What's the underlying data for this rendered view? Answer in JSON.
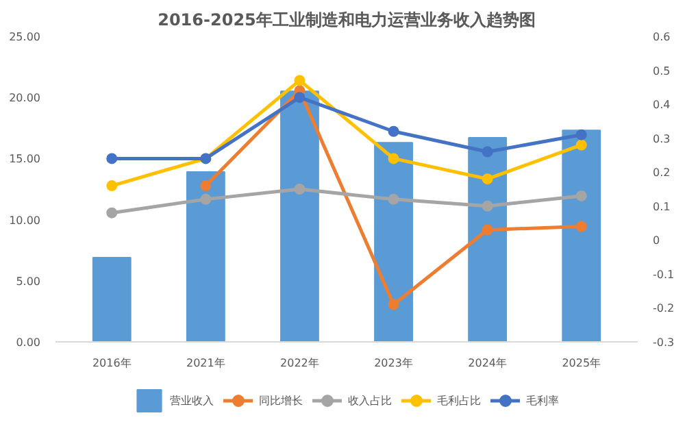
{
  "chart_data": {
    "type": "bar",
    "title": "2016-2025年工业制造和电力运营业务收入趋势图",
    "categories": [
      "2016年",
      "2021年",
      "2022年",
      "2023年",
      "2024年",
      "2025年"
    ],
    "series": [
      {
        "name": "营业收入",
        "color": "#5b9bd5",
        "values": [
          6.9,
          13.9,
          20.5,
          16.3,
          16.7,
          17.3
        ]
      },
      {
        "name": "同比增长",
        "type": "line",
        "axis": "y2",
        "color": "#ed7d31",
        "values": [
          null,
          0.16,
          0.44,
          -0.19,
          0.03,
          0.04
        ]
      },
      {
        "name": "收入占比",
        "type": "line",
        "axis": "y2",
        "color": "#a5a5a5",
        "values": [
          0.08,
          0.12,
          0.15,
          0.12,
          0.1,
          0.13
        ]
      },
      {
        "name": "毛利占比",
        "type": "line",
        "axis": "y2",
        "color": "#ffc000",
        "values": [
          0.16,
          0.24,
          0.47,
          0.24,
          0.18,
          0.28
        ]
      },
      {
        "name": "毛利率",
        "type": "line",
        "axis": "y2",
        "color": "#4472c4",
        "values": [
          0.24,
          0.24,
          0.42,
          0.32,
          0.26,
          0.31
        ]
      }
    ],
    "ylim": [
      0,
      25
    ],
    "yticks": [
      {
        "value": 0,
        "label": "0.00"
      },
      {
        "value": 5,
        "label": "5.00"
      },
      {
        "value": 10,
        "label": "10.00"
      },
      {
        "value": 15,
        "label": "15.00"
      },
      {
        "value": 20,
        "label": "20.00"
      },
      {
        "value": 25,
        "label": "25.00"
      }
    ],
    "y2lim": [
      -0.3,
      0.6
    ],
    "y2ticks": [
      -0.3,
      -0.2,
      -0.1,
      0,
      0.1,
      0.2,
      0.3,
      0.4,
      0.5,
      0.6
    ],
    "legend": "bottom",
    "marker": "circle",
    "grid": false
  }
}
